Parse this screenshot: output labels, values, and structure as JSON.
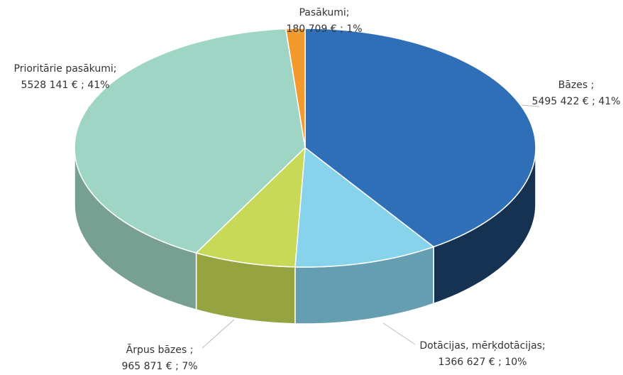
{
  "chart_data": {
    "type": "pie",
    "categories": [
      "Bāzes ;",
      "Dotācijas, mērķdotācijas;",
      "Ārpus bāzes ;",
      "Prioritārie pasākumi;",
      "Pasākumi;"
    ],
    "values": [
      5495422,
      1366627,
      965871,
      5528141,
      180709
    ],
    "value_labels": [
      "5495 422 € ; 41%",
      "1366 627 € ; 10%",
      "965 871 € ; 7%",
      "5528 141 € ; 41%",
      "180 709 € ; 1%"
    ],
    "colors": [
      "#2e6fb7",
      "#87d3ec",
      "#c8d957",
      "#9fd5c4",
      "#f39a2e"
    ]
  }
}
